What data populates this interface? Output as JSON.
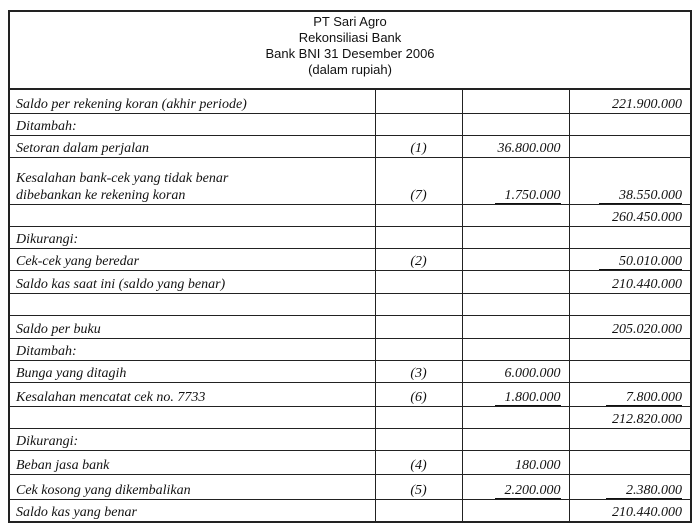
{
  "header": {
    "company": "PT Sari Agro",
    "title": "Rekonsiliasi Bank",
    "subtitle": "Bank BNI  31 Desember 2006",
    "unit": "(dalam rupiah)"
  },
  "rows": [
    {
      "label": "Saldo per rekening koran  (akhir periode)",
      "ref": "",
      "mid": "",
      "right": "221.900.000"
    },
    {
      "label": "Ditambah:",
      "ref": "",
      "mid": "",
      "right": ""
    },
    {
      "label": "Setoran dalam perjalan",
      "ref": "(1)",
      "mid": "36.800.000",
      "right": ""
    },
    {
      "label": "Kesalahan bank-cek yang tidak benar",
      "label2": "dibebankan ke rekening koran",
      "ref": "(7)",
      "mid": "1.750.000",
      "mid_underline": true,
      "right": "38.550.000",
      "right_underline": true
    },
    {
      "label": "",
      "ref": "",
      "mid": "",
      "right": "260.450.000"
    },
    {
      "label": "Dikurangi:",
      "ref": "",
      "mid": "",
      "right": ""
    },
    {
      "label": "Cek-cek yang beredar",
      "ref": "(2)",
      "mid": "",
      "right": "50.010.000",
      "right_underline": true
    },
    {
      "label": "Saldo kas saat ini (saldo yang benar)",
      "ref": "",
      "mid": "",
      "right": "210.440.000"
    },
    {
      "label": "",
      "ref": "",
      "mid": "",
      "right": ""
    },
    {
      "label": "Saldo per buku",
      "ref": "",
      "mid": "",
      "right": "205.020.000"
    },
    {
      "label": "Ditambah:",
      "ref": "",
      "mid": "",
      "right": ""
    },
    {
      "label": "Bunga yang ditagih",
      "ref": "(3)",
      "mid": "6.000.000",
      "right": ""
    },
    {
      "label": "Kesalahan mencatat cek no. 7733",
      "ref": "(6)",
      "mid": "1.800.000",
      "mid_underline": true,
      "right": "7.800.000",
      "right_underline": true
    },
    {
      "label": "",
      "ref": "",
      "mid": "",
      "right": "212.820.000"
    },
    {
      "label": "Dikurangi:",
      "ref": "",
      "mid": "",
      "right": ""
    },
    {
      "label": "Beban jasa bank",
      "ref": "(4)",
      "mid": "180.000",
      "right": ""
    },
    {
      "label": "Cek kosong yang dikembalikan",
      "ref": "(5)",
      "mid": "2.200.000",
      "mid_underline": true,
      "right": "2.380.000",
      "right_underline": true
    },
    {
      "label": "Saldo kas yang benar",
      "ref": "",
      "mid": "",
      "right": "210.440.000"
    }
  ]
}
